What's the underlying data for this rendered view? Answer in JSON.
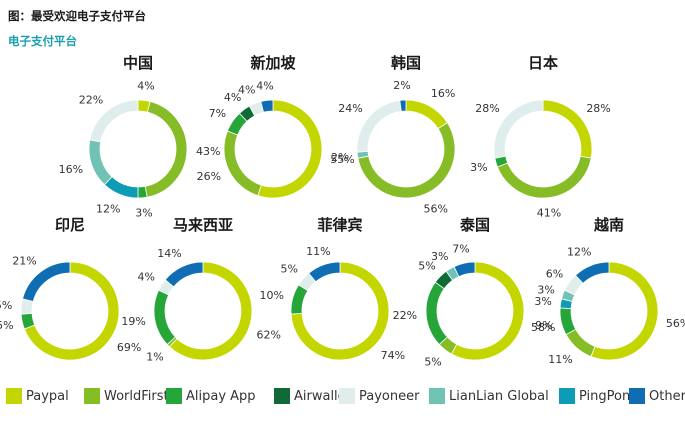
{
  "figure": {
    "title": "图：最受欢迎电子支付平台",
    "subtitle": "电子支付平台"
  },
  "colors": {
    "Paypal": "#c4d600",
    "WorldFirst": "#86bc25",
    "Alipay App": "#26a639",
    "Airwallex": "#0f6b35",
    "Payoneer": "#dfeeec",
    "LianLian Global": "#6fc2b4",
    "PingPong": "#0d9bb5",
    "Other": "#0f6db3"
  },
  "legend": [
    "Paypal",
    "WorldFirst",
    "Alipay App",
    "Airwallex",
    "Payoneer",
    "LianLian Global",
    "PingPong",
    "Other"
  ],
  "chart_data": [
    {
      "type": "pie",
      "title": "中国",
      "slices": [
        {
          "name": "Paypal",
          "value": 4
        },
        {
          "name": "WorldFirst",
          "value": 43
        },
        {
          "name": "Alipay App",
          "value": 3
        },
        {
          "name": "PingPong",
          "value": 12
        },
        {
          "name": "LianLian Global",
          "value": 16
        },
        {
          "name": "Payoneer",
          "value": 22
        }
      ]
    },
    {
      "type": "pie",
      "title": "新加坡",
      "slices": [
        {
          "name": "Paypal",
          "value": 55
        },
        {
          "name": "WorldFirst",
          "value": 26
        },
        {
          "name": "Alipay App",
          "value": 7
        },
        {
          "name": "Airwallex",
          "value": 4
        },
        {
          "name": "Payoneer",
          "value": 4
        },
        {
          "name": "Other",
          "value": 4
        }
      ]
    },
    {
      "type": "pie",
      "title": "韩国",
      "slices": [
        {
          "name": "Paypal",
          "value": 16
        },
        {
          "name": "WorldFirst",
          "value": 56
        },
        {
          "name": "LianLian Global",
          "value": 2
        },
        {
          "name": "Payoneer",
          "value": 24
        },
        {
          "name": "Other",
          "value": 2
        }
      ]
    },
    {
      "type": "pie",
      "title": "日本",
      "slices": [
        {
          "name": "Paypal",
          "value": 28
        },
        {
          "name": "WorldFirst",
          "value": 41
        },
        {
          "name": "Alipay App",
          "value": 3
        },
        {
          "name": "Payoneer",
          "value": 28
        }
      ]
    },
    {
      "type": "pie",
      "title": "印尼",
      "slices": [
        {
          "name": "Paypal",
          "value": 69
        },
        {
          "name": "Alipay App",
          "value": 5
        },
        {
          "name": "Payoneer",
          "value": 5
        },
        {
          "name": "Other",
          "value": 21
        }
      ]
    },
    {
      "type": "pie",
      "title": "马来西亚",
      "slices": [
        {
          "name": "Paypal",
          "value": 62
        },
        {
          "name": "WorldFirst",
          "value": 1
        },
        {
          "name": "Alipay App",
          "value": 19
        },
        {
          "name": "Payoneer",
          "value": 4
        },
        {
          "name": "Other",
          "value": 14
        }
      ]
    },
    {
      "type": "pie",
      "title": "菲律宾",
      "slices": [
        {
          "name": "Paypal",
          "value": 74
        },
        {
          "name": "Alipay App",
          "value": 10
        },
        {
          "name": "Payoneer",
          "value": 5
        },
        {
          "name": "Other",
          "value": 11
        }
      ]
    },
    {
      "type": "pie",
      "title": "泰国",
      "slices": [
        {
          "name": "Paypal",
          "value": 58
        },
        {
          "name": "WorldFirst",
          "value": 5
        },
        {
          "name": "Alipay App",
          "value": 22
        },
        {
          "name": "Airwallex",
          "value": 5
        },
        {
          "name": "LianLian Global",
          "value": 3
        },
        {
          "name": "Other",
          "value": 7
        }
      ]
    },
    {
      "type": "pie",
      "title": "越南",
      "slices": [
        {
          "name": "Paypal",
          "value": 56
        },
        {
          "name": "WorldFirst",
          "value": 11
        },
        {
          "name": "Alipay App",
          "value": 9
        },
        {
          "name": "PingPong",
          "value": 3
        },
        {
          "name": "LianLian Global",
          "value": 3
        },
        {
          "name": "Payoneer",
          "value": 6
        },
        {
          "name": "Other",
          "value": 12
        }
      ]
    }
  ]
}
